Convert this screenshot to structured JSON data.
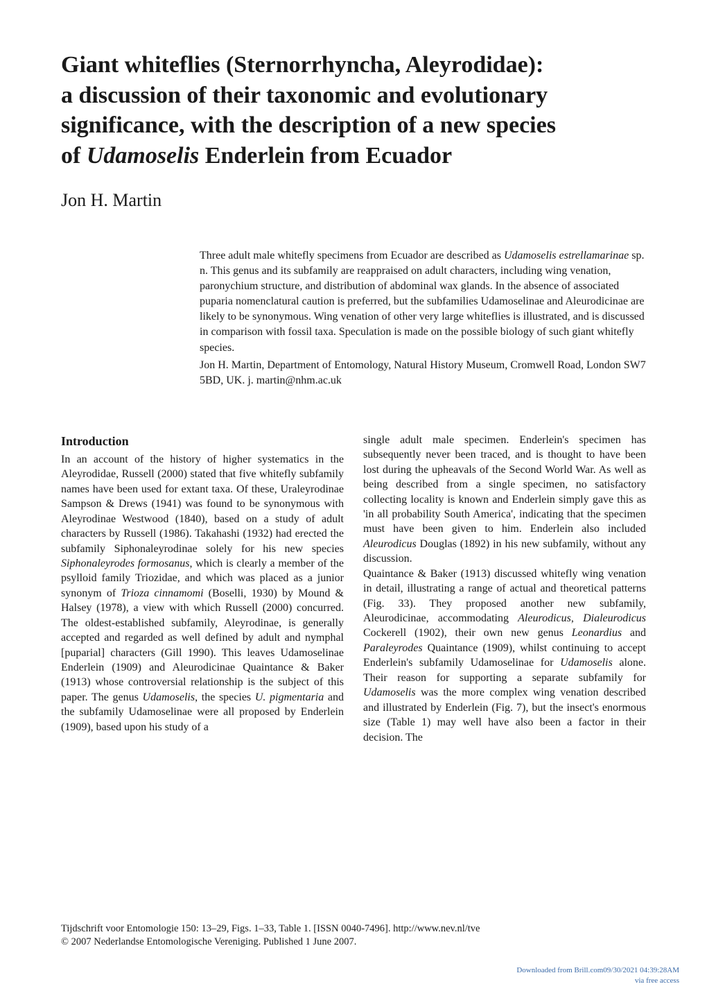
{
  "title": {
    "line1": "Giant whiteflies (Sternorrhyncha, Aleyrodidae):",
    "line2": "a discussion of their taxonomic and evolutionary",
    "line3": "significance, with the description of a new species",
    "line4_pre": "of ",
    "line4_italic": "Udamoselis",
    "line4_post": " Enderlein from Ecuador"
  },
  "author": "Jon H. Martin",
  "abstract": {
    "p1_pre": "Three adult male whitefly specimens from Ecuador are described as ",
    "p1_it1": "Udamoselis estrellamarinae",
    "p1_post": " sp. n. This genus and its subfamily are reappraised on adult characters, including wing venation, paronychium structure, and distribution of abdominal wax glands. In the absence of associated puparia nomenclatural caution is preferred, but the subfamilies Udamoselinae and Aleurodicinae are likely to be synonymous. Wing venation of other very large whiteflies is illustrated, and is discussed in comparison with fossil taxa. Speculation is made on the possible biology of such giant whitefly species.",
    "p2": "Jon H. Martin, Department of Entomology, Natural History Museum, Cromwell Road, London SW7 5BD, UK. j. martin@nhm.ac.uk"
  },
  "heading": "Introduction",
  "col1": {
    "t1": "In an account of the history of higher systematics in the Aleyrodidae, Russell (2000) stated that five whitefly subfamily names have been used for extant taxa. Of these, Uraleyrodinae Sampson & Drews (1941) was found to be synonymous with Aleyrodinae Westwood (1840), based on a study of adult characters by Russell (1986). Takahashi (1932) had erected the subfamily Siphonaleyrodinae solely for his new species ",
    "it1": "Siphonaleyrodes formosanus",
    "t2": ", which is clearly a member of the psylloid family Triozidae, and which was placed as a junior synonym of ",
    "it2": "Trioza cinnamomi",
    "t3": " (Boselli, 1930) by Mound & Halsey (1978), a view with which Russell (2000) concurred. The oldest-established subfamily, Aleyrodinae, is generally accepted and regarded as well defined by adult and nymphal [puparial] characters (Gill 1990). This leaves Udamoselinae Enderlein (1909) and Aleurodicinae Quaintance & Baker (1913) whose controversial relationship is the subject of this paper. The genus ",
    "it3": "Udamoselis",
    "t4": ", the species ",
    "it4": "U. pigmentaria",
    "t5": " and the subfamily Udamoselinae were all proposed by Enderlein (1909), based upon his study of a"
  },
  "col2": {
    "t1": "single adult male specimen. Enderlein's specimen has subsequently never been traced, and is thought to have been lost during the upheavals of the Second World War. As well as being described from a single specimen, no satisfactory collecting locality is known and Enderlein simply gave this as 'in all probability South America', indicating that the specimen must have been given to him. Enderlein also included ",
    "it1": "Aleurodicus",
    "t2": " Douglas (1892) in his new subfamily, without any discussion.",
    "t3": "Quaintance & Baker (1913) discussed whitefly wing venation in detail, illustrating a range of actual and theoretical patterns (Fig. 33). They proposed another new subfamily, Aleurodicinae, accommodating ",
    "it2": "Aleurodicus",
    "t4": ", ",
    "it3": "Dialeurodicus",
    "t5": " Cockerell (1902), their own new genus ",
    "it4": "Leonardius",
    "t6": " and ",
    "it5": "Paraleyrodes",
    "t7": " Quaintance (1909), whilst continuing to accept Enderlein's subfamily Udamoselinae for ",
    "it6": "Udamoselis",
    "t8": " alone. Their reason for supporting a separate subfamily for ",
    "it7": "Udamoselis",
    "t9": " was the more complex wing venation described and illustrated by Enderlein (Fig. 7), but the insect's enormous size (Table 1) may well have also been a factor in their decision. The"
  },
  "footer": {
    "l1": "Tijdschrift voor Entomologie 150: 13–29, Figs. 1–33, Table 1. [ISSN 0040-7496]. http://www.nev.nl/tve",
    "l2": "© 2007 Nederlandse Entomologische Vereniging. Published 1 June 2007."
  },
  "download": {
    "l1": "Downloaded from Brill.com09/30/2021 04:39:28AM",
    "l2": "via free access"
  }
}
